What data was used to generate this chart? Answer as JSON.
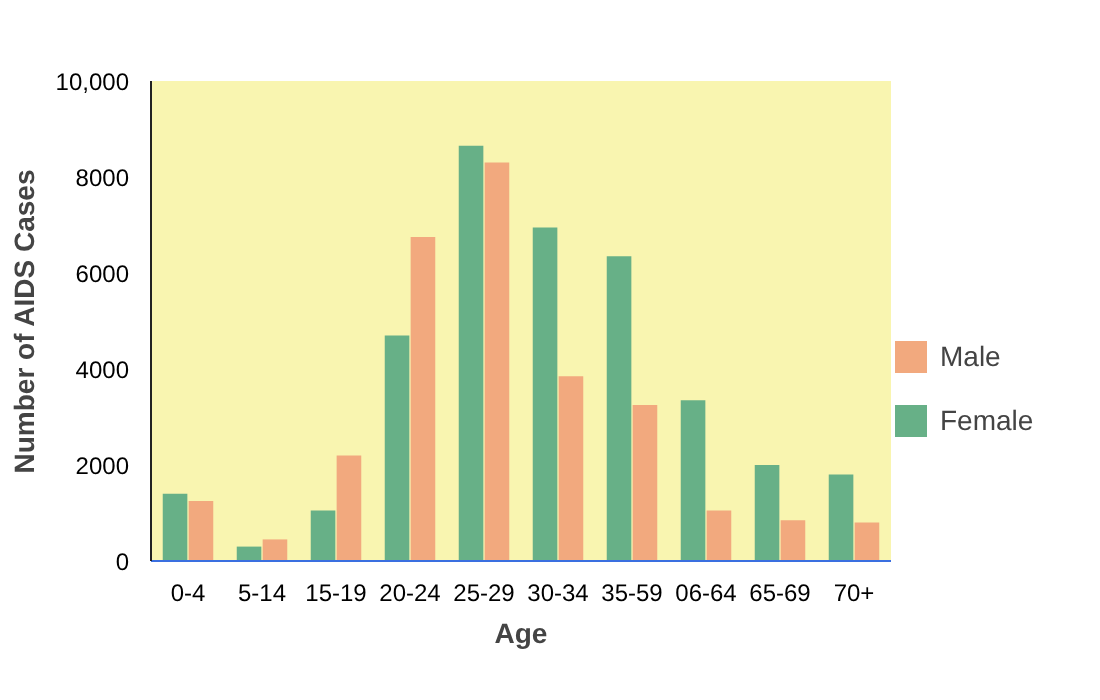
{
  "chart_data": {
    "type": "bar",
    "xlabel": "Age",
    "ylabel": "Number of AIDS Cases",
    "categories": [
      "0-4",
      "5-14",
      "15-19",
      "20-24",
      "25-29",
      "30-34",
      "35-59",
      "06-64",
      "65-69",
      "70+"
    ],
    "series": [
      {
        "name": "Female",
        "color": "#67b087",
        "values": [
          1400,
          300,
          1050,
          4700,
          8650,
          6950,
          6350,
          3350,
          2000,
          1800
        ]
      },
      {
        "name": "Male",
        "color": "#f2a97e",
        "values": [
          1250,
          450,
          2200,
          6750,
          8300,
          3850,
          3250,
          1050,
          850,
          800
        ]
      }
    ],
    "ylim": [
      0,
      10000
    ],
    "yticks": [
      0,
      2000,
      4000,
      6000,
      8000,
      {
        "value": 10000,
        "label": "10,000"
      }
    ],
    "grid": false,
    "legend": "right"
  }
}
